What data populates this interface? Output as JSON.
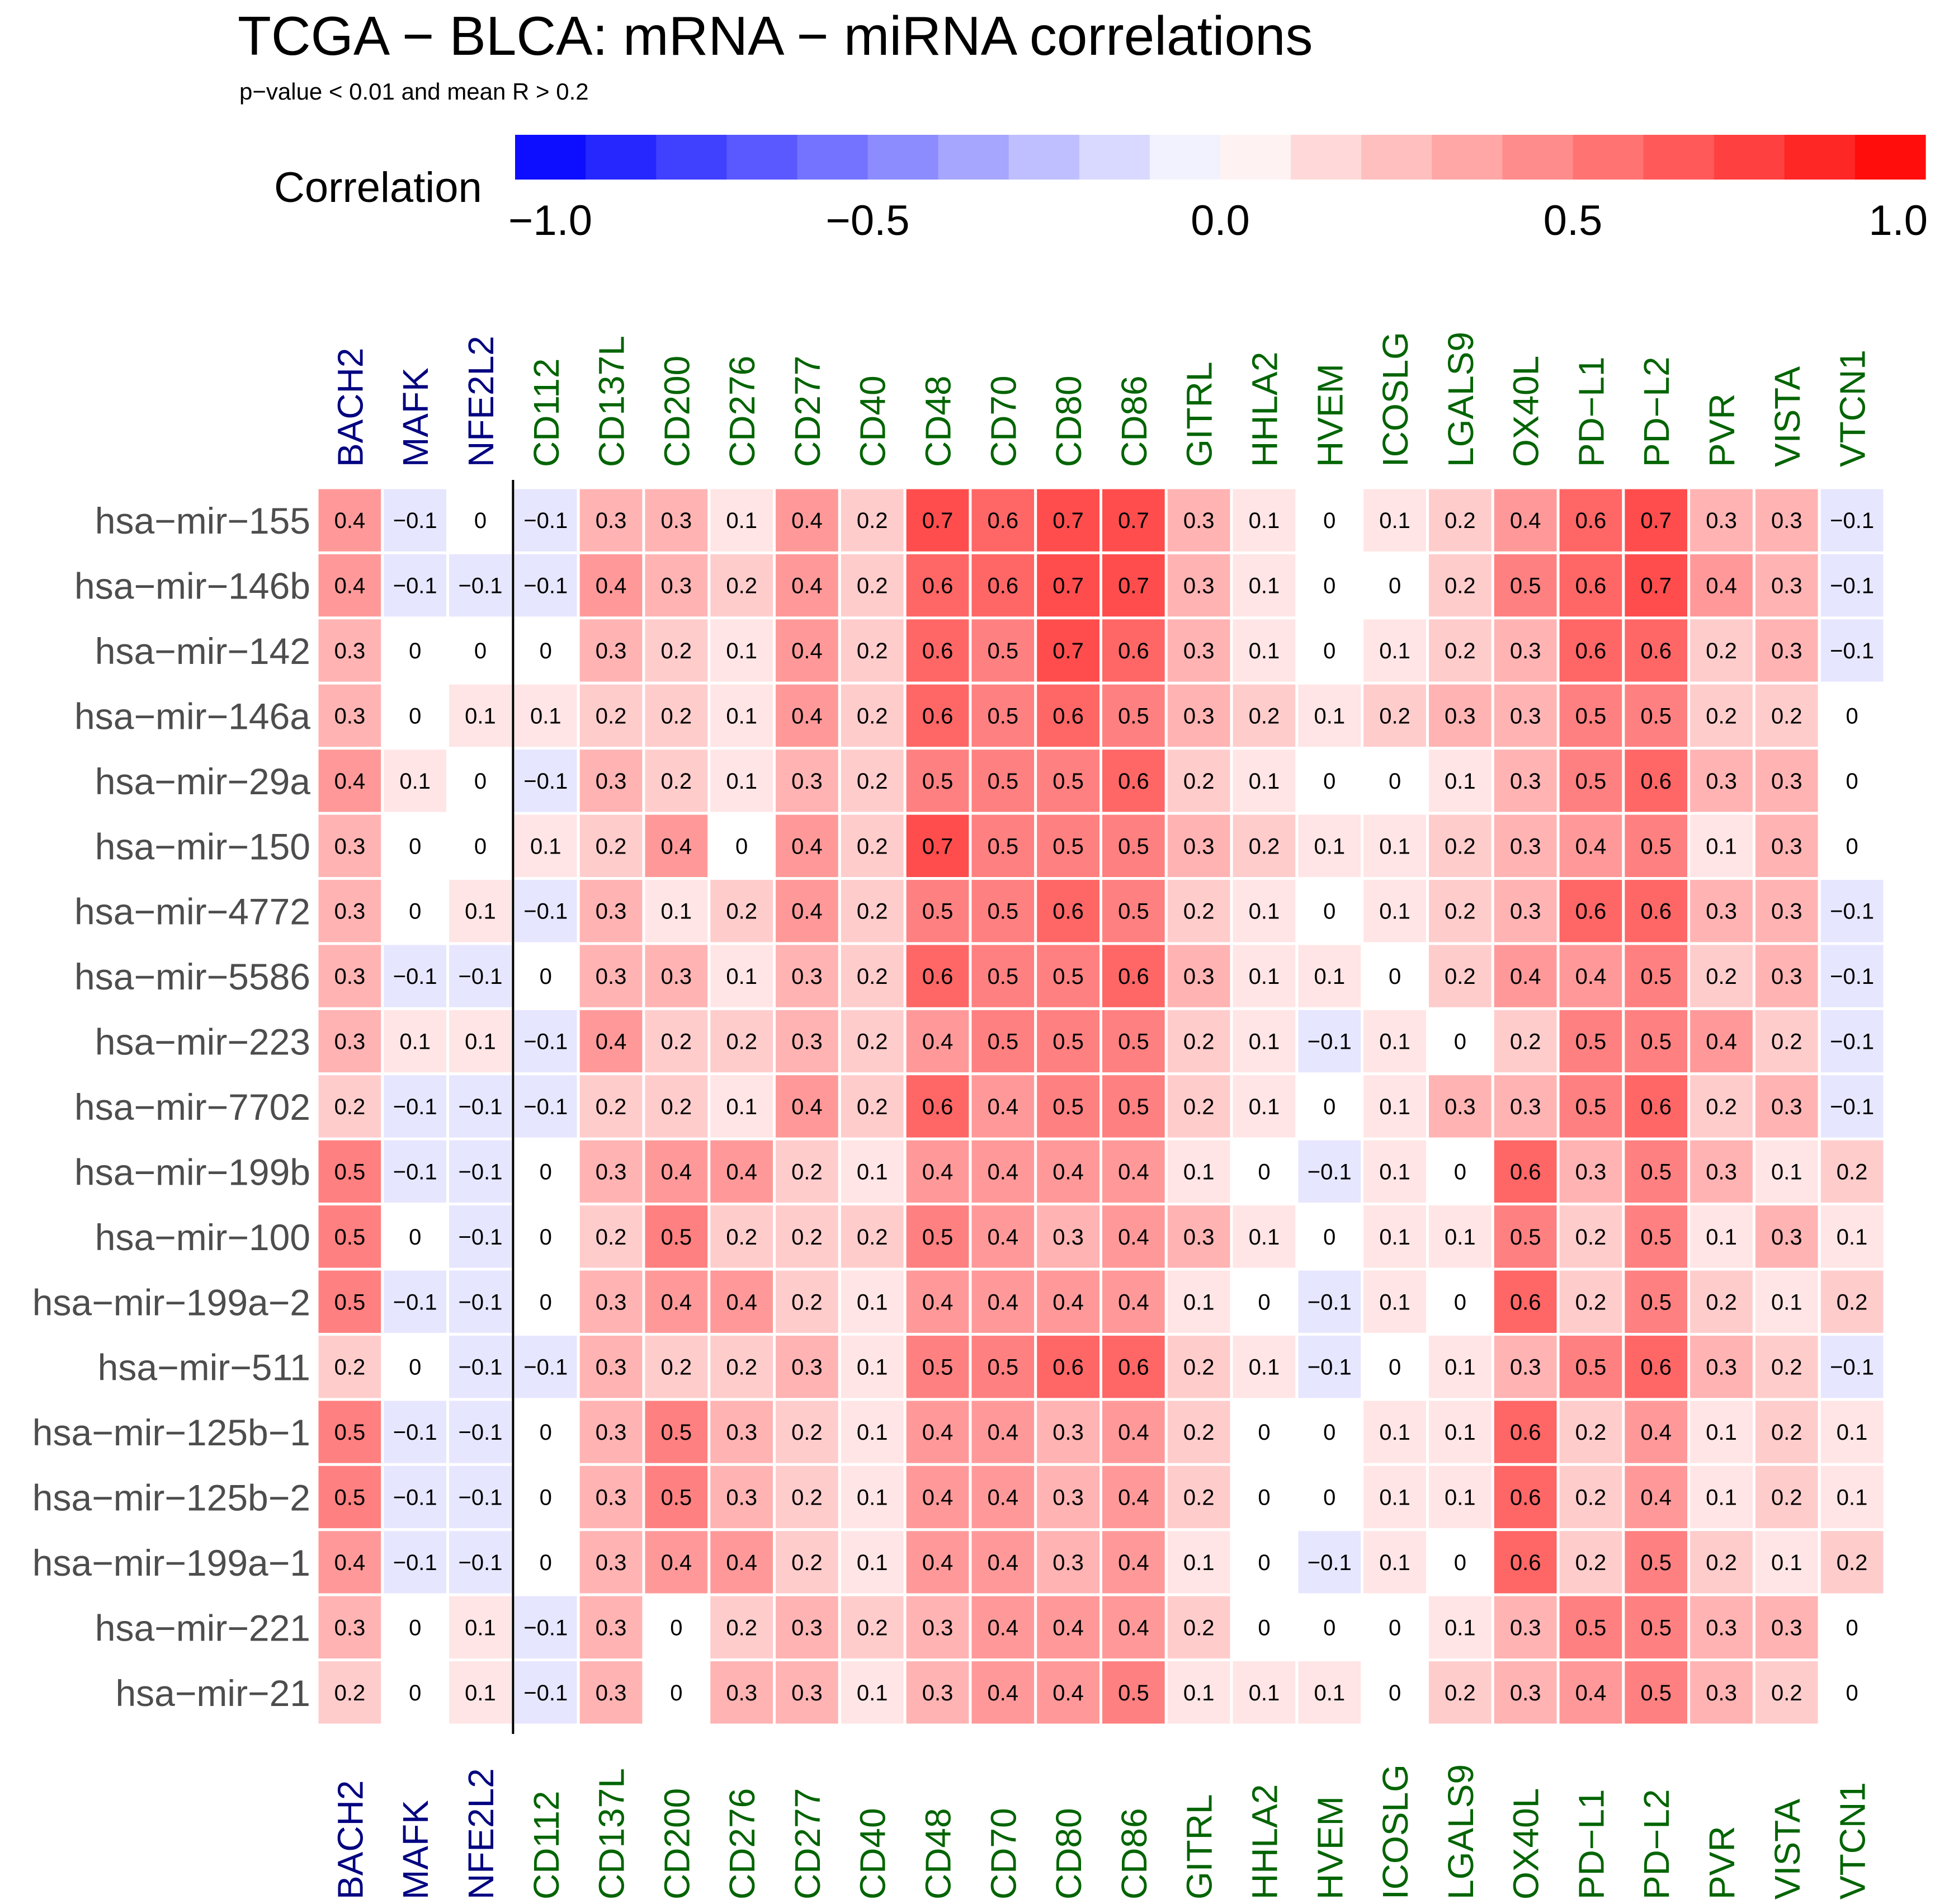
{
  "chart_data": {
    "type": "heatmap",
    "title": "TCGA − BLCA: mRNA − miRNA correlations",
    "subtitle": "p−value < 0.01 and mean R > 0.2",
    "legend": {
      "title": "Correlation",
      "ticks": [
        "−1.0",
        "−0.5",
        "0.0",
        "0.5",
        "1.0"
      ],
      "range": [
        -1,
        1
      ],
      "placement": "top",
      "colors": {
        "low": "#0000FF",
        "mid": "#FFFFFF",
        "high": "#FF0000"
      }
    },
    "label_colors": {
      "group1": "#000080",
      "group2": "#006400"
    },
    "columns": [
      "BACH2",
      "MAFK",
      "NFE2L2",
      "CD112",
      "CD137L",
      "CD200",
      "CD276",
      "CD277",
      "CD40",
      "CD48",
      "CD70",
      "CD80",
      "CD86",
      "GITRL",
      "HHLA2",
      "HVEM",
      "ICOSLG",
      "LGALS9",
      "OX40L",
      "PD−L1",
      "PD−L2",
      "PVR",
      "VISTA",
      "VTCN1"
    ],
    "column_groups": [
      "group1",
      "group1",
      "group1",
      "group2",
      "group2",
      "group2",
      "group2",
      "group2",
      "group2",
      "group2",
      "group2",
      "group2",
      "group2",
      "group2",
      "group2",
      "group2",
      "group2",
      "group2",
      "group2",
      "group2",
      "group2",
      "group2",
      "group2",
      "group2"
    ],
    "rows": [
      "hsa−mir−155",
      "hsa−mir−146b",
      "hsa−mir−142",
      "hsa−mir−146a",
      "hsa−mir−29a",
      "hsa−mir−150",
      "hsa−mir−4772",
      "hsa−mir−5586",
      "hsa−mir−223",
      "hsa−mir−7702",
      "hsa−mir−199b",
      "hsa−mir−100",
      "hsa−mir−199a−2",
      "hsa−mir−511",
      "hsa−mir−125b−1",
      "hsa−mir−125b−2",
      "hsa−mir−199a−1",
      "hsa−mir−221",
      "hsa−mir−21"
    ],
    "values": [
      [
        0.4,
        -0.1,
        0,
        -0.1,
        0.3,
        0.3,
        0.1,
        0.4,
        0.2,
        0.7,
        0.6,
        0.7,
        0.7,
        0.3,
        0.1,
        0,
        0.1,
        0.2,
        0.4,
        0.6,
        0.7,
        0.3,
        0.3,
        -0.1
      ],
      [
        0.4,
        -0.1,
        -0.1,
        -0.1,
        0.4,
        0.3,
        0.2,
        0.4,
        0.2,
        0.6,
        0.6,
        0.7,
        0.7,
        0.3,
        0.1,
        0,
        0,
        0.2,
        0.5,
        0.6,
        0.7,
        0.4,
        0.3,
        -0.1
      ],
      [
        0.3,
        0,
        0,
        0,
        0.3,
        0.2,
        0.1,
        0.4,
        0.2,
        0.6,
        0.5,
        0.7,
        0.6,
        0.3,
        0.1,
        0,
        0.1,
        0.2,
        0.3,
        0.6,
        0.6,
        0.2,
        0.3,
        -0.1
      ],
      [
        0.3,
        0,
        0.1,
        0.1,
        0.2,
        0.2,
        0.1,
        0.4,
        0.2,
        0.6,
        0.5,
        0.6,
        0.5,
        0.3,
        0.2,
        0.1,
        0.2,
        0.3,
        0.3,
        0.5,
        0.5,
        0.2,
        0.2,
        0
      ],
      [
        0.4,
        0.1,
        0,
        -0.1,
        0.3,
        0.2,
        0.1,
        0.3,
        0.2,
        0.5,
        0.5,
        0.5,
        0.6,
        0.2,
        0.1,
        0,
        0,
        0.1,
        0.3,
        0.5,
        0.6,
        0.3,
        0.3,
        0
      ],
      [
        0.3,
        0,
        0,
        0.1,
        0.2,
        0.4,
        0,
        0.4,
        0.2,
        0.7,
        0.5,
        0.5,
        0.5,
        0.3,
        0.2,
        0.1,
        0.1,
        0.2,
        0.3,
        0.4,
        0.5,
        0.1,
        0.3,
        0
      ],
      [
        0.3,
        0,
        0.1,
        -0.1,
        0.3,
        0.1,
        0.2,
        0.4,
        0.2,
        0.5,
        0.5,
        0.6,
        0.5,
        0.2,
        0.1,
        0,
        0.1,
        0.2,
        0.3,
        0.6,
        0.6,
        0.3,
        0.3,
        -0.1
      ],
      [
        0.3,
        -0.1,
        -0.1,
        0,
        0.3,
        0.3,
        0.1,
        0.3,
        0.2,
        0.6,
        0.5,
        0.5,
        0.6,
        0.3,
        0.1,
        0.1,
        0,
        0.2,
        0.4,
        0.4,
        0.5,
        0.2,
        0.3,
        -0.1
      ],
      [
        0.3,
        0.1,
        0.1,
        -0.1,
        0.4,
        0.2,
        0.2,
        0.3,
        0.2,
        0.4,
        0.5,
        0.5,
        0.5,
        0.2,
        0.1,
        -0.1,
        0.1,
        0,
        0.2,
        0.5,
        0.5,
        0.4,
        0.2,
        -0.1
      ],
      [
        0.2,
        -0.1,
        -0.1,
        -0.1,
        0.2,
        0.2,
        0.1,
        0.4,
        0.2,
        0.6,
        0.4,
        0.5,
        0.5,
        0.2,
        0.1,
        0,
        0.1,
        0.3,
        0.3,
        0.5,
        0.6,
        0.2,
        0.3,
        -0.1
      ],
      [
        0.5,
        -0.1,
        -0.1,
        0,
        0.3,
        0.4,
        0.4,
        0.2,
        0.1,
        0.4,
        0.4,
        0.4,
        0.4,
        0.1,
        0,
        -0.1,
        0.1,
        0,
        0.6,
        0.3,
        0.5,
        0.3,
        0.1,
        0.2
      ],
      [
        0.5,
        0,
        -0.1,
        0,
        0.2,
        0.5,
        0.2,
        0.2,
        0.2,
        0.5,
        0.4,
        0.3,
        0.4,
        0.3,
        0.1,
        0,
        0.1,
        0.1,
        0.5,
        0.2,
        0.5,
        0.1,
        0.3,
        0.1
      ],
      [
        0.5,
        -0.1,
        -0.1,
        0,
        0.3,
        0.4,
        0.4,
        0.2,
        0.1,
        0.4,
        0.4,
        0.4,
        0.4,
        0.1,
        0,
        -0.1,
        0.1,
        0,
        0.6,
        0.2,
        0.5,
        0.2,
        0.1,
        0.2
      ],
      [
        0.2,
        0,
        -0.1,
        -0.1,
        0.3,
        0.2,
        0.2,
        0.3,
        0.1,
        0.5,
        0.5,
        0.6,
        0.6,
        0.2,
        0.1,
        -0.1,
        0,
        0.1,
        0.3,
        0.5,
        0.6,
        0.3,
        0.2,
        -0.1
      ],
      [
        0.5,
        -0.1,
        -0.1,
        0,
        0.3,
        0.5,
        0.3,
        0.2,
        0.1,
        0.4,
        0.4,
        0.3,
        0.4,
        0.2,
        0,
        0,
        0.1,
        0.1,
        0.6,
        0.2,
        0.4,
        0.1,
        0.2,
        0.1
      ],
      [
        0.5,
        -0.1,
        -0.1,
        0,
        0.3,
        0.5,
        0.3,
        0.2,
        0.1,
        0.4,
        0.4,
        0.3,
        0.4,
        0.2,
        0,
        0,
        0.1,
        0.1,
        0.6,
        0.2,
        0.4,
        0.1,
        0.2,
        0.1
      ],
      [
        0.4,
        -0.1,
        -0.1,
        0,
        0.3,
        0.4,
        0.4,
        0.2,
        0.1,
        0.4,
        0.4,
        0.3,
        0.4,
        0.1,
        0,
        -0.1,
        0.1,
        0,
        0.6,
        0.2,
        0.5,
        0.2,
        0.1,
        0.2
      ],
      [
        0.3,
        0,
        0.1,
        -0.1,
        0.3,
        0,
        0.2,
        0.3,
        0.2,
        0.3,
        0.4,
        0.4,
        0.4,
        0.2,
        0,
        0,
        0,
        0.1,
        0.3,
        0.5,
        0.5,
        0.3,
        0.3,
        0
      ],
      [
        0.2,
        0,
        0.1,
        -0.1,
        0.3,
        0,
        0.3,
        0.3,
        0.1,
        0.3,
        0.4,
        0.4,
        0.5,
        0.1,
        0.1,
        0.1,
        0,
        0.2,
        0.3,
        0.4,
        0.5,
        0.3,
        0.2,
        0
      ]
    ]
  }
}
